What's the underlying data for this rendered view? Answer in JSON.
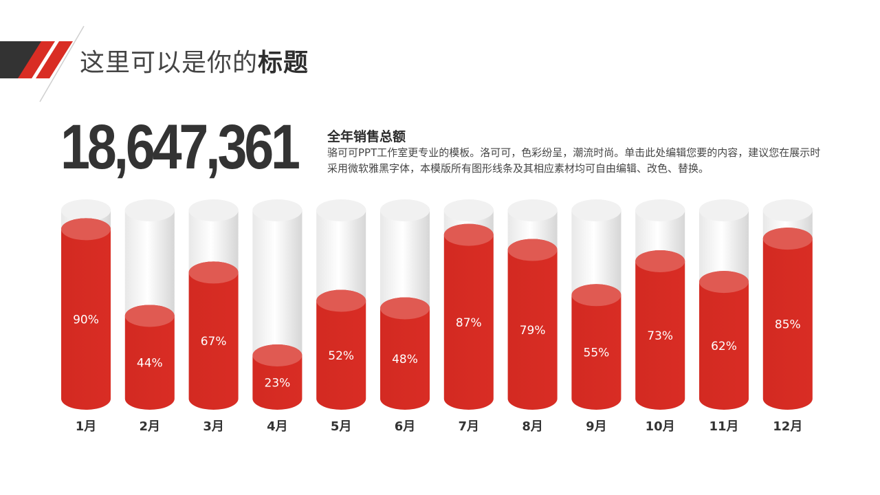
{
  "header": {
    "title_light": "这里可以是你的",
    "title_bold": "标题"
  },
  "summary": {
    "total": "18,647,361",
    "heading": "全年销售总额",
    "description": "骆可可PPT工作室更专业的模板。洛可可，色彩纷呈，潮流时尚。单击此处编辑您要的内容，建议您在展示时采用微软雅黑字体，本模版所有图形线条及其相应素材均可自由编辑、改色、替换。"
  },
  "colors": {
    "accent": "#d92d24",
    "accent_top": "#e05a52",
    "dark": "#333333"
  },
  "chart_data": {
    "type": "bar",
    "categories": [
      "1月",
      "2月",
      "3月",
      "4月",
      "5月",
      "6月",
      "7月",
      "8月",
      "9月",
      "10月",
      "11月",
      "12月"
    ],
    "values": [
      90,
      44,
      67,
      23,
      52,
      48,
      87,
      79,
      55,
      73,
      62,
      85
    ],
    "value_labels": [
      "90%",
      "44%",
      "67%",
      "23%",
      "52%",
      "48%",
      "87%",
      "79%",
      "55%",
      "73%",
      "62%",
      "85%"
    ],
    "ylim": [
      0,
      100
    ],
    "style": "cylinder",
    "grid": false,
    "legend": "none"
  }
}
